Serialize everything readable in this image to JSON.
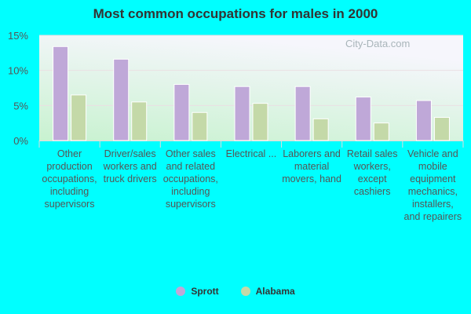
{
  "chart_data": {
    "type": "bar",
    "title": "Most common occupations for males in 2000",
    "categories": [
      "Other production occupations, including supervisors",
      "Driver/sales workers and truck drivers",
      "Other sales and related occupations, including supervisors",
      "Electrical ...",
      "Laborers and material movers, hand",
      "Retail sales workers, except cashiers",
      "Vehicle and mobile equipment mechanics, installers, and repairers"
    ],
    "series": [
      {
        "name": "Sprott",
        "color": "#bfa8d8",
        "values": [
          13.4,
          11.6,
          8.0,
          7.7,
          7.7,
          6.2,
          5.7
        ]
      },
      {
        "name": "Alabama",
        "color": "#c4d9a8",
        "values": [
          6.5,
          5.5,
          4.0,
          5.3,
          3.1,
          2.5,
          3.3
        ]
      }
    ],
    "ylim": [
      0,
      15
    ],
    "yticks": [
      "0%",
      "5%",
      "10%",
      "15%"
    ],
    "ytick_values": [
      0,
      5,
      10,
      15
    ],
    "grid": true,
    "legend": "bottom",
    "watermark": "City-Data.com"
  }
}
